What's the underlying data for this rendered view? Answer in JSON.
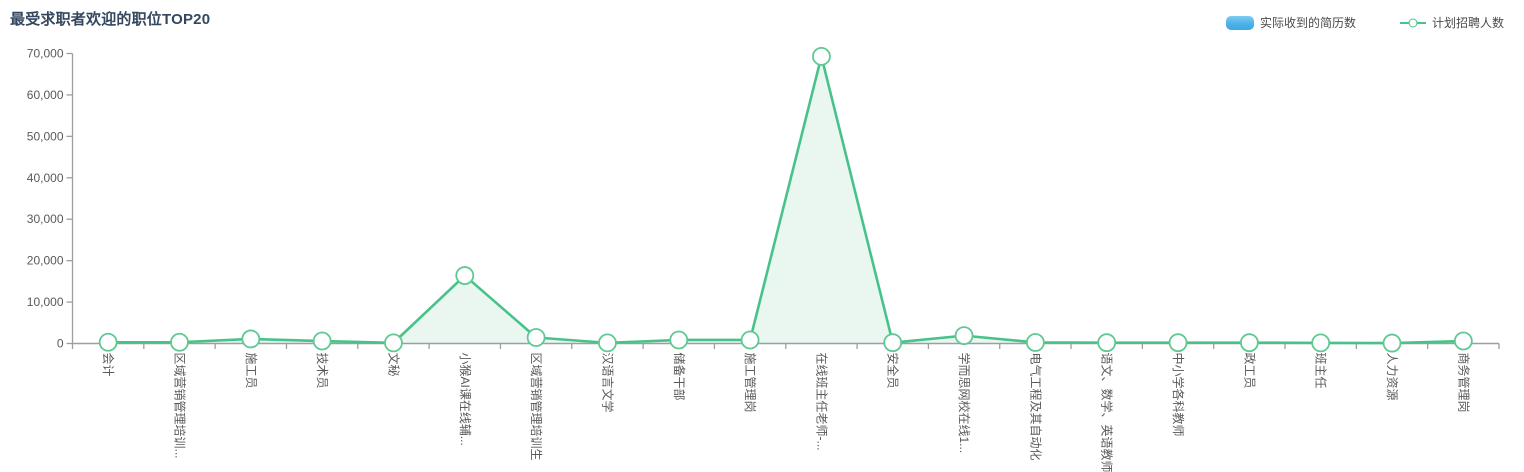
{
  "title": "最受求职者欢迎的职位TOP20",
  "legend": {
    "items": [
      {
        "label": "实际收到的简历数",
        "type": "bar",
        "color": "#49b0e8"
      },
      {
        "label": "计划招聘人数",
        "type": "line",
        "color": "#47c38a"
      }
    ]
  },
  "colors": {
    "title": "#33475f",
    "axis": "#9e9e9e",
    "axis_label": "#595959",
    "line": "#47c38a",
    "marker_stroke": "#5fc893",
    "area_fill": "#e9f7f0",
    "bar": "#49b0e8"
  },
  "chart_data": {
    "type": "line",
    "title": "最受求职者欢迎的职位TOP20",
    "categories": [
      "会计",
      "区域营销管理培训...",
      "施工员",
      "技术员",
      "文秘",
      "小猴AI课在线辅...",
      "区域营销管理培训生",
      "汉语言文学",
      "储备干部",
      "施工管理岗",
      "在线班主任老师-...",
      "安全员",
      "学而思网校在线1...",
      "电气工程及其自动化",
      "语文、数学、英语教师",
      "中小学各科教师",
      "政工员",
      "班主任",
      "人力资源",
      "商务管理岗"
    ],
    "series": [
      {
        "name": "实际收到的简历数",
        "type": "bar",
        "color": "#49b0e8",
        "values": [
          0,
          0,
          0,
          0,
          0,
          0,
          0,
          0,
          0,
          0,
          0,
          0,
          0,
          0,
          0,
          0,
          0,
          0,
          0,
          0
        ]
      },
      {
        "name": "计划招聘人数",
        "type": "line",
        "color": "#47c38a",
        "area_color": "#e9f7f0",
        "marker": "circle",
        "values": [
          300,
          300,
          1100,
          600,
          150,
          16400,
          1450,
          150,
          850,
          850,
          69300,
          200,
          1900,
          250,
          200,
          200,
          200,
          150,
          100,
          600
        ]
      }
    ],
    "ylim": [
      0,
      70000
    ],
    "ytick_step": 10000,
    "ytick_labels": [
      "0",
      "10,000",
      "20,000",
      "30,000",
      "40,000",
      "50,000",
      "60,000",
      "70,000"
    ],
    "xlabel": "",
    "ylabel": "",
    "grid": false,
    "legend_position": "top-right",
    "x_label_rotation_deg": 90
  }
}
